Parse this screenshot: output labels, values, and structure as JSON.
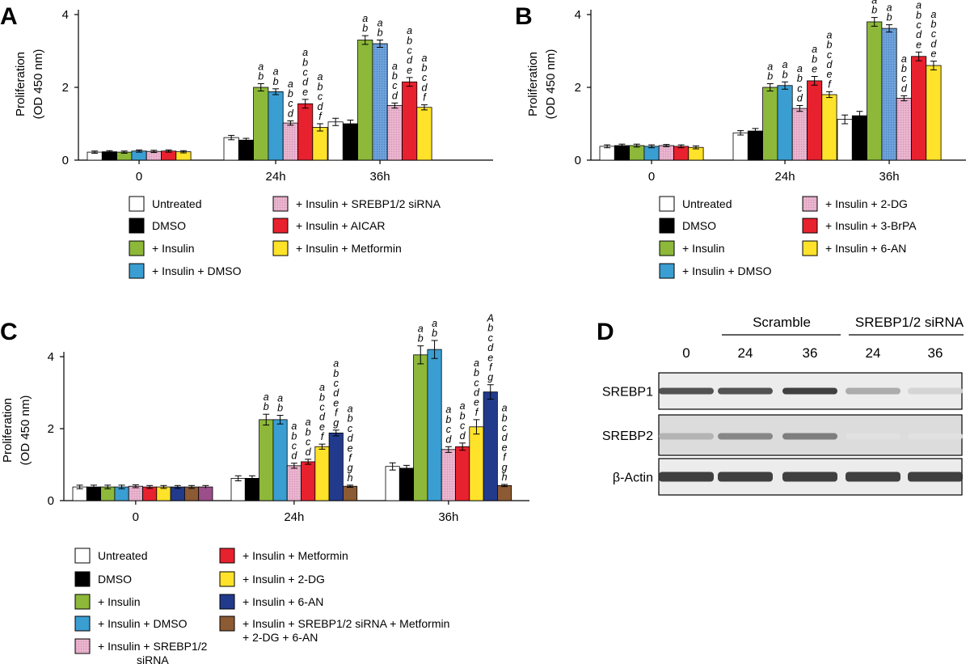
{
  "chart_data": [
    {
      "panel": "A",
      "type": "bar",
      "ylabel": [
        "Proliferation",
        "(OD 450 nm)"
      ],
      "ylim": [
        0,
        4
      ],
      "yticks": [
        0,
        2,
        4
      ],
      "categories": [
        "0",
        "24h",
        "36h"
      ],
      "series": [
        {
          "name": "Untreated",
          "color": "#ffffff",
          "values": [
            0.22,
            0.62,
            1.05
          ],
          "errors": [
            0.03,
            0.06,
            0.1
          ]
        },
        {
          "name": "DMSO",
          "color": "#000000",
          "values": [
            0.23,
            0.55,
            1.0
          ],
          "errors": [
            0.03,
            0.05,
            0.1
          ]
        },
        {
          "name": "+ Insulin",
          "color": "#8db83a",
          "values": [
            0.22,
            2.0,
            3.3
          ],
          "errors": [
            0.03,
            0.1,
            0.12
          ]
        },
        {
          "name": "+ Insulin + DMSO",
          "color": "#3a9ed2",
          "values": [
            0.25,
            1.88,
            3.2
          ],
          "errors": [
            0.03,
            0.08,
            0.1
          ]
        },
        {
          "name": "+ Insulin + SREBP1/2 siRNA",
          "color": "#e8a8c8",
          "values": [
            0.24,
            1.02,
            1.5
          ],
          "errors": [
            0.03,
            0.06,
            0.07
          ]
        },
        {
          "name": "+ Insulin + AICAR",
          "color": "#e8212e",
          "values": [
            0.25,
            1.55,
            2.15
          ],
          "errors": [
            0.03,
            0.12,
            0.12
          ]
        },
        {
          "name": "+ Insulin + Metformin",
          "color": "#ffe22a",
          "values": [
            0.23,
            0.9,
            1.45
          ],
          "errors": [
            0.03,
            0.1,
            0.07
          ]
        }
      ],
      "annotations": {
        "24h": [
          "",
          "",
          "a\nb",
          "a\nb",
          "a\nb\nc\nd",
          "a\nb\nc\nd\ne",
          "a\nb\nc\nd\nf"
        ],
        "36h": [
          "",
          "",
          "a\nb",
          "a\nb",
          "a\nb\nc\nd",
          "a\nb\nc\nd\ne",
          "a\nb\nc\nd\nf"
        ]
      }
    },
    {
      "panel": "B",
      "type": "bar",
      "ylabel": [
        "Proliferation",
        "(OD 450 nm)"
      ],
      "ylim": [
        0,
        4
      ],
      "yticks": [
        0,
        2,
        4
      ],
      "categories": [
        "0",
        "24h",
        "36h"
      ],
      "series": [
        {
          "name": "Untreated",
          "color": "#ffffff",
          "values": [
            0.38,
            0.75,
            1.12
          ],
          "errors": [
            0.04,
            0.06,
            0.12
          ]
        },
        {
          "name": "DMSO",
          "color": "#000000",
          "values": [
            0.4,
            0.8,
            1.22
          ],
          "errors": [
            0.04,
            0.07,
            0.12
          ]
        },
        {
          "name": "+ Insulin",
          "color": "#8db83a",
          "values": [
            0.4,
            2.0,
            3.8
          ],
          "errors": [
            0.04,
            0.1,
            0.12
          ]
        },
        {
          "name": "+ Insulin + DMSO",
          "color": "#3a9ed2",
          "values": [
            0.38,
            2.05,
            3.62
          ],
          "errors": [
            0.04,
            0.1,
            0.1
          ]
        },
        {
          "name": "+ Insulin + 2-DG",
          "color": "#e8a8c8",
          "values": [
            0.4,
            1.42,
            1.7
          ],
          "errors": [
            0.03,
            0.08,
            0.07
          ]
        },
        {
          "name": "+ Insulin + 3-BrPA",
          "color": "#e8212e",
          "values": [
            0.38,
            2.18,
            2.85
          ],
          "errors": [
            0.04,
            0.12,
            0.12
          ]
        },
        {
          "name": "+ Insulin + 6-AN",
          "color": "#ffe22a",
          "values": [
            0.35,
            1.8,
            2.6
          ],
          "errors": [
            0.04,
            0.08,
            0.12
          ]
        }
      ],
      "annotations": {
        "24h": [
          "",
          "",
          "a\nb",
          "a\nb",
          "a\nb\nc\nd",
          "a\nb\ne",
          "a\nb\nc\nd\ne\nf"
        ],
        "36h": [
          "",
          "",
          "a\nb",
          "a\nb",
          "a\nb\nc\nd",
          "a\nb\nc\nd\ne",
          "a\nb\nc\nd\ne"
        ]
      }
    },
    {
      "panel": "C",
      "type": "bar",
      "ylabel": [
        "Proliferation",
        "(OD 450 nm)"
      ],
      "ylim": [
        0,
        4
      ],
      "yticks": [
        0,
        2,
        4
      ],
      "categories": [
        "0",
        "24h",
        "36h"
      ],
      "series": [
        {
          "name": "Untreated",
          "color": "#ffffff",
          "values": [
            0.38,
            0.62,
            0.95
          ],
          "errors": [
            0.05,
            0.07,
            0.1
          ]
        },
        {
          "name": "DMSO",
          "color": "#000000",
          "values": [
            0.38,
            0.62,
            0.9
          ],
          "errors": [
            0.05,
            0.07,
            0.08
          ]
        },
        {
          "name": "+ Insulin",
          "color": "#8db83a",
          "values": [
            0.38,
            2.25,
            4.05
          ],
          "errors": [
            0.05,
            0.15,
            0.25
          ]
        },
        {
          "name": "+ Insulin + DMSO",
          "color": "#3a9ed2",
          "values": [
            0.38,
            2.25,
            4.2
          ],
          "errors": [
            0.05,
            0.12,
            0.25
          ]
        },
        {
          "name": "+ Insulin + SREBP1/2 siRNA",
          "color": "#e8a8c8",
          "values": [
            0.4,
            0.97,
            1.42
          ],
          "errors": [
            0.04,
            0.07,
            0.08
          ]
        },
        {
          "name": "+ Insulin + Metformin",
          "color": "#e8212e",
          "values": [
            0.38,
            1.08,
            1.5
          ],
          "errors": [
            0.04,
            0.07,
            0.1
          ]
        },
        {
          "name": "+ Insulin + 2-DG",
          "color": "#ffe22a",
          "values": [
            0.38,
            1.5,
            2.05
          ],
          "errors": [
            0.04,
            0.07,
            0.2
          ]
        },
        {
          "name": "+ Insulin + 6-AN",
          "color": "#223a8c",
          "values": [
            0.38,
            1.88,
            3.02
          ],
          "errors": [
            0.04,
            0.08,
            0.2
          ]
        },
        {
          "name": "+ Insulin + SREBP1/2 siRNA + Metformin + 2-DG + 6-AN",
          "color": "#8c5a33",
          "values": [
            0.38,
            0.4,
            0.42
          ],
          "errors": [
            0.04,
            0.03,
            0.03
          ]
        }
      ],
      "extra_series_color": "#9b4e8a",
      "annotations": {
        "24h": [
          "",
          "",
          "a\nb",
          "a\nb",
          "a\nb\nc\nd",
          "a\nb\nc\nd",
          "a\nb\nc\nd\ne\nf",
          "a\nb\nc\nd\ne\nf\ng",
          "a\nb\nc\nd\ne\nf\ng\nh"
        ],
        "36h": [
          "",
          "",
          "a\nb",
          "a\nb",
          "a\nb\nc\nd",
          "a\nb\nc\nd",
          "a\nb\nc\nd\ne\nf",
          "A\nb\nc\nd\ne\nf\ng",
          "a\nb\nc\nd\ne\nf\ng\nh"
        ]
      }
    }
  ],
  "legends": {
    "A": [
      {
        "label": "Untreated",
        "color": "#ffffff"
      },
      {
        "label": "DMSO",
        "color": "#000000"
      },
      {
        "label": "+ Insulin",
        "color": "#8db83a"
      },
      {
        "label": "+ Insulin + DMSO",
        "color": "#3a9ed2"
      },
      {
        "label": "+ Insulin + SREBP1/2 siRNA",
        "color": "#e8a8c8"
      },
      {
        "label": "+ Insulin + AICAR",
        "color": "#e8212e"
      },
      {
        "label": "+ Insulin + Metformin",
        "color": "#ffe22a"
      }
    ],
    "B": [
      {
        "label": "Untreated",
        "color": "#ffffff"
      },
      {
        "label": "DMSO",
        "color": "#000000"
      },
      {
        "label": "+ Insulin",
        "color": "#8db83a"
      },
      {
        "label": "+ Insulin + DMSO",
        "color": "#3a9ed2"
      },
      {
        "label": "+ Insulin + 2-DG",
        "color": "#e8a8c8"
      },
      {
        "label": "+ Insulin + 3-BrPA",
        "color": "#e8212e"
      },
      {
        "label": "+ Insulin + 6-AN",
        "color": "#ffe22a"
      }
    ],
    "C": [
      {
        "label": "Untreated",
        "color": "#ffffff"
      },
      {
        "label": "DMSO",
        "color": "#000000"
      },
      {
        "label": "+ Insulin",
        "color": "#8db83a"
      },
      {
        "label": "+ Insulin + DMSO",
        "color": "#3a9ed2"
      },
      {
        "label": "+ Insulin + SREBP1/2",
        "label2": "siRNA",
        "color": "#e8a8c8"
      },
      {
        "label": "+ Insulin + Metformin",
        "color": "#e8212e"
      },
      {
        "label": "+ Insulin + 2-DG",
        "color": "#ffe22a"
      },
      {
        "label": "+ Insulin + 6-AN",
        "color": "#223a8c"
      },
      {
        "label": "+ Insulin + SREBP1/2 siRNA + Metformin",
        "label2": "+ 2-DG + 6-AN",
        "color": "#8c5a33"
      }
    ]
  },
  "panel_letters": [
    "A",
    "B",
    "C",
    "D"
  ],
  "blot": {
    "groups": [
      "Scramble",
      "SREBP1/2 siRNA"
    ],
    "lanes": [
      "0",
      "24",
      "36",
      "24",
      "36"
    ],
    "rows": [
      {
        "label": "SREBP1",
        "intensity": [
          0.85,
          0.85,
          0.95,
          0.35,
          0.12
        ]
      },
      {
        "label": "SREBP2",
        "intensity": [
          0.3,
          0.55,
          0.6,
          0.05,
          0.05
        ]
      },
      {
        "label": "β-Actin",
        "intensity": [
          0.95,
          0.95,
          0.95,
          0.95,
          0.95
        ]
      }
    ]
  }
}
